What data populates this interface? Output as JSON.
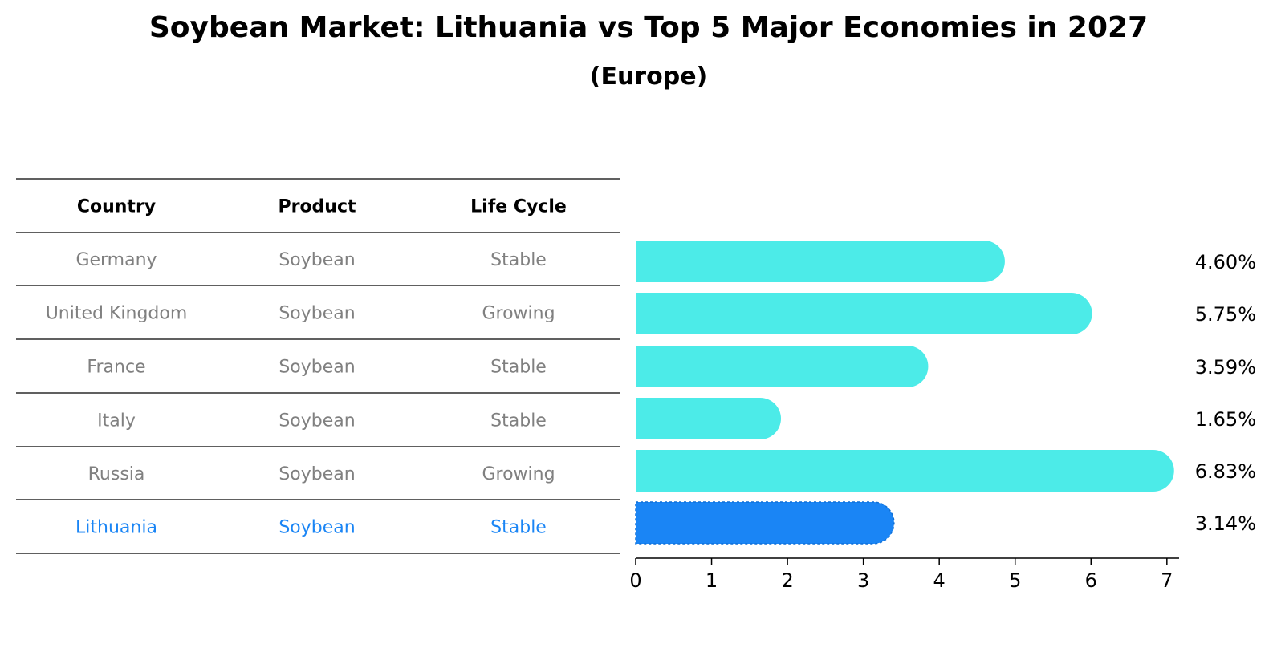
{
  "title": "Soybean Market: Lithuania vs Top 5 Major Economies in 2027",
  "subtitle": "(Europe)",
  "table": {
    "headers": [
      "Country",
      "Product",
      "Life Cycle"
    ],
    "rows": [
      [
        "Germany",
        "Soybean",
        "Stable"
      ],
      [
        "United Kingdom",
        "Soybean",
        "Growing"
      ],
      [
        "France",
        "Soybean",
        "Stable"
      ],
      [
        "Italy",
        "Soybean",
        "Stable"
      ],
      [
        "Russia",
        "Soybean",
        "Growing"
      ],
      [
        "Lithuania",
        "Soybean",
        "Stable"
      ]
    ]
  },
  "chart_data": {
    "type": "bar",
    "orientation": "horizontal",
    "categories": [
      "Germany",
      "United Kingdom",
      "France",
      "Italy",
      "Russia",
      "Lithuania"
    ],
    "values": [
      4.6,
      5.75,
      3.59,
      1.65,
      6.83,
      3.14
    ],
    "value_labels": [
      "4.60%",
      "5.75%",
      "3.59%",
      "1.65%",
      "6.83%",
      "3.14%"
    ],
    "xlim": [
      0,
      7.15
    ],
    "xticks": [
      "0",
      "1",
      "2",
      "3",
      "4",
      "5",
      "6",
      "7"
    ],
    "highlight_category": "Lithuania",
    "colors": {
      "default": "#4cebe8",
      "highlight": "#1a85f5"
    }
  },
  "colors": {
    "row_text": "#808080",
    "highlight_text": "#1a85f5"
  }
}
